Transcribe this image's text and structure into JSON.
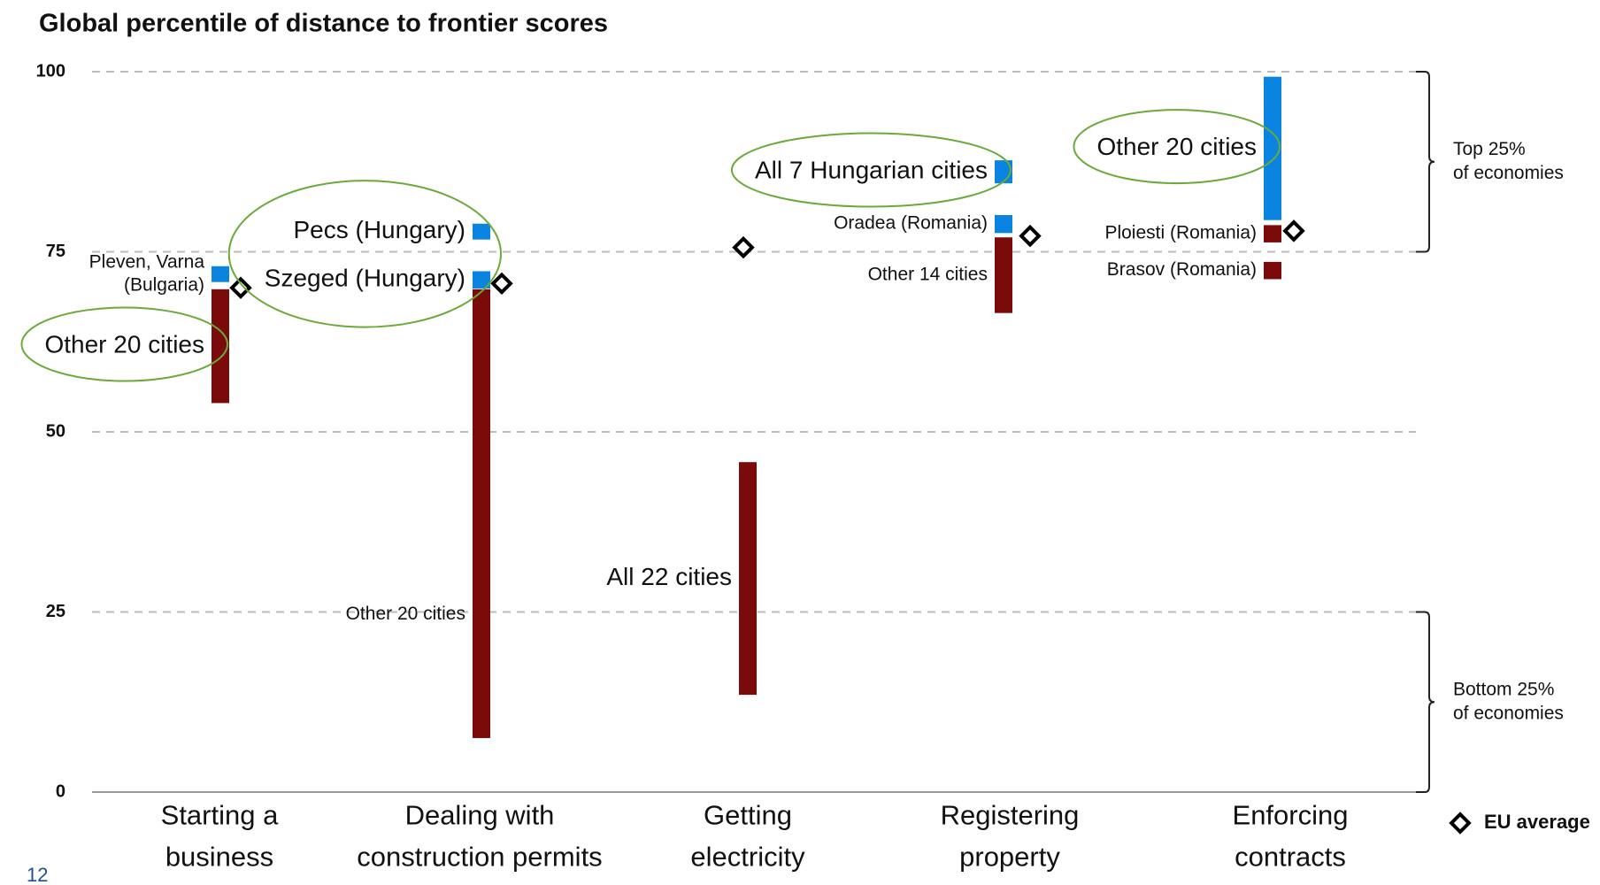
{
  "chart_data": {
    "type": "range-bar",
    "title": "Global percentile of distance to frontier scores",
    "ylim": [
      0,
      100
    ],
    "yticks": [
      0,
      25,
      50,
      75,
      100
    ],
    "grid": true,
    "legend": {
      "label": "EU average"
    },
    "page_number": "12",
    "brackets": [
      {
        "label": [
          "Top 25%",
          "of economies"
        ],
        "from": 75,
        "to": 100
      },
      {
        "label": [
          "Bottom 25%",
          "of economies"
        ],
        "from": 0,
        "to": 25
      }
    ],
    "groups": [
      {
        "category": [
          "Starting a",
          "business"
        ],
        "eu_average": 70,
        "segments": [
          {
            "label": [
              "Pleven, Varna",
              "(Bulgaria)"
            ],
            "color": "#0a84e0",
            "low": 70.8,
            "high": 73,
            "style": "small"
          },
          {
            "label": [
              "Other 20 cities"
            ],
            "color": "#7b0a0a",
            "low": 54,
            "high": 69.8,
            "style": "circled"
          }
        ]
      },
      {
        "category": [
          "Dealing with",
          "construction permits"
        ],
        "eu_average": 70.6,
        "segments": [
          {
            "label": [
              "Pecs (Hungary)"
            ],
            "color": "#0a84e0",
            "low": 76.7,
            "high": 78.9,
            "style": "circled"
          },
          {
            "label": [
              "Szeged (Hungary)"
            ],
            "color": "#0a84e0",
            "low": 69.9,
            "high": 72.3,
            "style": "circled"
          },
          {
            "label": [
              "Other 20 cities"
            ],
            "color": "#7b0a0a",
            "low": 7.5,
            "high": 69.8,
            "style": "small"
          }
        ]
      },
      {
        "category": [
          "Getting",
          "electricity"
        ],
        "eu_average": 75.6,
        "segments": [
          {
            "label": [
              "All 22 cities"
            ],
            "color": "#7b0a0a",
            "low": 13.5,
            "high": 45.8,
            "style": "large"
          }
        ]
      },
      {
        "category": [
          "Registering",
          "property"
        ],
        "eu_average": 77.2,
        "segments": [
          {
            "label": [
              "All 7 Hungarian cities"
            ],
            "color": "#0a84e0",
            "low": 84.5,
            "high": 87.7,
            "style": "circled"
          },
          {
            "label": [
              "Oradea (Romania)"
            ],
            "color": "#0a84e0",
            "low": 77.6,
            "high": 80.1,
            "style": "small"
          },
          {
            "label": [
              "Other 14 cities"
            ],
            "color": "#7b0a0a",
            "low": 66.5,
            "high": 77,
            "style": "small"
          }
        ]
      },
      {
        "category": [
          "Enforcing",
          "contracts"
        ],
        "eu_average": 77.9,
        "segments": [
          {
            "label": [
              "Other 20 cities"
            ],
            "color": "#0a84e0",
            "low": 79.4,
            "high": 99.3,
            "style": "circled"
          },
          {
            "label": [
              "Ploiesti (Romania)"
            ],
            "color": "#7b0a0a",
            "low": 76.3,
            "high": 78.7,
            "style": "small"
          },
          {
            "label": [
              "Brasov (Romania)"
            ],
            "color": "#7b0a0a",
            "low": 71.2,
            "high": 73.6,
            "style": "small"
          }
        ]
      }
    ]
  }
}
